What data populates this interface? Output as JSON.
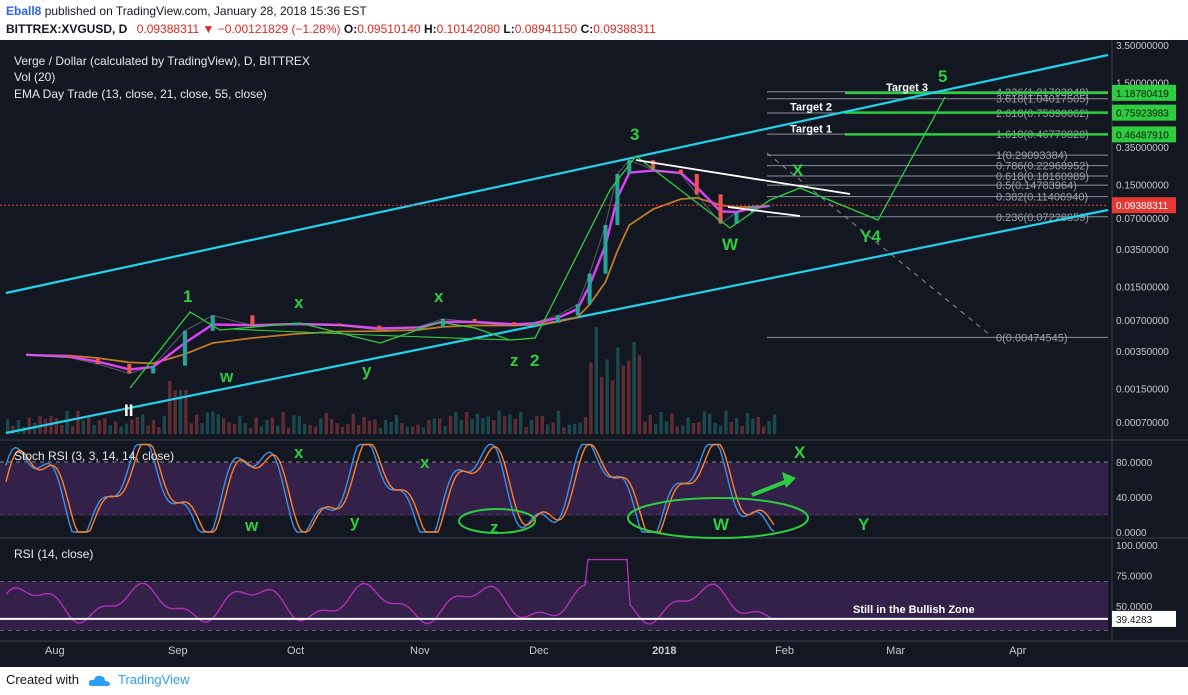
{
  "header": {
    "publisher": "Eball8",
    "published_text": " published on TradingView.com, January 28, 2018 15:36 EST",
    "symbol": "BITTREX:XVGUSD, D",
    "last": "0.09388311",
    "change": "▼ −0.00121829 (−1.28%)",
    "o_label": "O:",
    "o": "0.09510140",
    "h_label": "H:",
    "h": "0.10142080",
    "l_label": "L:",
    "l": "0.08941150",
    "c_label": "C:",
    "c": "0.09388311"
  },
  "legend": {
    "title": "Verge / Dollar (calculated by TradingView), D, BITTREX",
    "vol": "Vol (20)",
    "ema": "EMA Day Trade (13, close, 21, close, 55, close)"
  },
  "colors": {
    "background": "#131722",
    "channel": "#22d3ee",
    "annotation": "#2ecc40",
    "ema_fast": "#e040fb",
    "ema_mid": "#2962ff",
    "ema_slow": "#c07a28",
    "candle_up": "#26a69a",
    "candle_down": "#ef5350",
    "price_tag": "#e53935",
    "stoch_k": "#3b8fe8",
    "stoch_d": "#ff7f27",
    "rsi": "#b02fb5",
    "osc_band": "#3a2351"
  },
  "chart_data": [
    {
      "type": "line",
      "name": "price",
      "y_scale": "log",
      "ylim": [
        0.0005,
        3.5
      ],
      "x_axis": [
        "Aug",
        "Sep",
        "Oct",
        "Nov",
        "Dec",
        "2018",
        "Feb",
        "Mar",
        "Apr"
      ],
      "y_ticks": [
        "3.50000000",
        "1.50000000",
        "0.70000000",
        "0.35000000",
        "0.15000000",
        "0.07000000",
        "0.03500000",
        "0.01500000",
        "0.00700000",
        "0.00350000",
        "0.00150000",
        "0.00070000"
      ],
      "price_label": "0.09388311",
      "x": [
        "2017-07-25",
        "2017-08-05",
        "2017-08-12",
        "2017-08-20",
        "2017-08-26",
        "2017-09-03",
        "2017-09-10",
        "2017-09-20",
        "2017-10-01",
        "2017-10-12",
        "2017-10-22",
        "2017-11-01",
        "2017-11-07",
        "2017-11-15",
        "2017-11-25",
        "2017-11-30",
        "2017-12-06",
        "2017-12-11",
        "2017-12-14",
        "2017-12-18",
        "2017-12-21",
        "2017-12-24",
        "2017-12-30",
        "2018-01-06",
        "2018-01-10",
        "2018-01-16",
        "2018-01-20",
        "2018-01-24",
        "2018-01-28"
      ],
      "series": [
        {
          "values": [
            0.0032,
            0.003,
            0.0026,
            0.0021,
            0.0025,
            0.0055,
            0.0078,
            0.0062,
            0.0065,
            0.0062,
            0.0056,
            0.006,
            0.0072,
            0.0067,
            0.0062,
            0.0066,
            0.0078,
            0.01,
            0.02,
            0.06,
            0.19,
            0.26,
            0.21,
            0.19,
            0.12,
            0.062,
            0.08,
            0.092,
            0.094
          ]
        }
      ],
      "ema": {
        "names": [
          "EMA 13",
          "EMA 21",
          "EMA 55"
        ]
      },
      "fib_levels": [
        {
          "label": "4.236(1.21703948)",
          "value": 1.217
        },
        {
          "label": "3.618(1.04017505)",
          "value": 1.04
        },
        {
          "label": "2.618(0.75398662)",
          "value": 0.754
        },
        {
          "label": "1.618(0.46779820)",
          "value": 0.468
        },
        {
          "label": "1(0.29093384)",
          "value": 0.291
        },
        {
          "label": "0.786(0.22968952)",
          "value": 0.2297
        },
        {
          "label": "0.618(0.18160989)",
          "value": 0.1816
        },
        {
          "label": "0.5(0.14783964)",
          "value": 0.1478
        },
        {
          "label": "0.382(0.11406940)",
          "value": 0.1141
        },
        {
          "label": "0.236(0.07228859)",
          "value": 0.0723
        },
        {
          "label": "0(0.00474545)",
          "value": 0.00475
        }
      ],
      "targets": [
        {
          "label": "Target 3",
          "value": "1.18780419",
          "v": 1.1878
        },
        {
          "label": "Target 2",
          "value": "0.75923983",
          "v": 0.7592
        },
        {
          "label": "Target 1",
          "value": "0.46487910",
          "v": 0.4649
        }
      ],
      "wave_labels": [
        "1",
        "x",
        "x",
        "w",
        "y",
        "z",
        "2",
        "3",
        "X",
        "W",
        "Y4",
        "5",
        "II"
      ]
    },
    {
      "type": "line",
      "name": "Stoch RSI (3, 3, 14, 14, close)",
      "ylim": [
        0,
        100
      ],
      "y_ticks": [
        "80.0000",
        "40.0000",
        "0.0000"
      ],
      "labels": [
        "x",
        "x",
        "w",
        "y",
        "z",
        "W",
        "X",
        "Y"
      ]
    },
    {
      "type": "line",
      "name": "RSI (14, close)",
      "ylim": [
        25,
        100
      ],
      "y_ticks": [
        "100.0000",
        "75.0000",
        "50.0000"
      ],
      "last_value": "39.4283",
      "annotation": "Still in the Bullish Zone"
    }
  ],
  "footer": {
    "created_with": "Created with",
    "brand": "TradingView"
  }
}
